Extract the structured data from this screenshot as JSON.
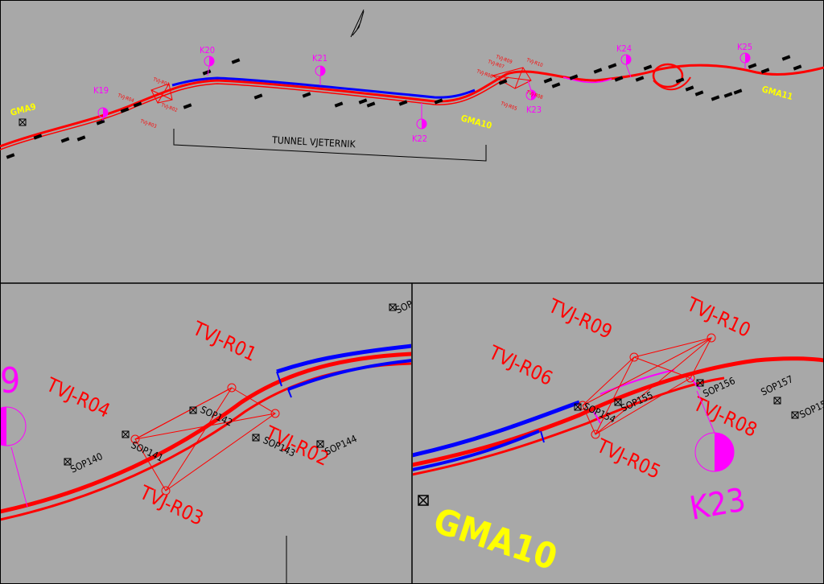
{
  "colors": {
    "background": "#a8a8a8",
    "frame": "#000000",
    "alignment": "#ff0000",
    "tunnel": "#0000ff",
    "benchmark": "#ff00ff",
    "gma": "#ffff00",
    "network": "#ff0000",
    "sop": "#000000"
  },
  "overview": {
    "tunnel_label": "TUNNEL VJETERNIK",
    "k_points": [
      "K19",
      "K20",
      "K21",
      "K22",
      "K23",
      "K24",
      "K25"
    ],
    "gma_points": [
      "GMA9",
      "GMA10",
      "GMA11"
    ],
    "network_west": [
      "TVJ-R01",
      "TVJ-R02",
      "TVJ-R03",
      "TVJ-R04"
    ],
    "network_east": [
      "TVJ-R05",
      "TVJ-R06",
      "TVJ-R07",
      "TVJ-R08",
      "TVJ-R09",
      "TVJ-R10"
    ],
    "north_arrow": "north-arrow-icon"
  },
  "detail_west": {
    "partial_label": "9",
    "rpoints": [
      "TVJ-R01",
      "TVJ-R02",
      "TVJ-R03",
      "TVJ-R04"
    ],
    "sop": [
      "SOP140",
      "SOP141",
      "SOP142",
      "SOP143",
      "SOP144",
      "SOP"
    ]
  },
  "detail_east": {
    "rpoints": [
      "TVJ-R05",
      "TVJ-R06",
      "TVJ-R08",
      "TVJ-R09",
      "TVJ-R10"
    ],
    "sop": [
      "SOP154",
      "SOP155",
      "SOP156",
      "SOP157",
      "SOP15"
    ],
    "k_label": "K23",
    "gma_label": "GMA10"
  }
}
